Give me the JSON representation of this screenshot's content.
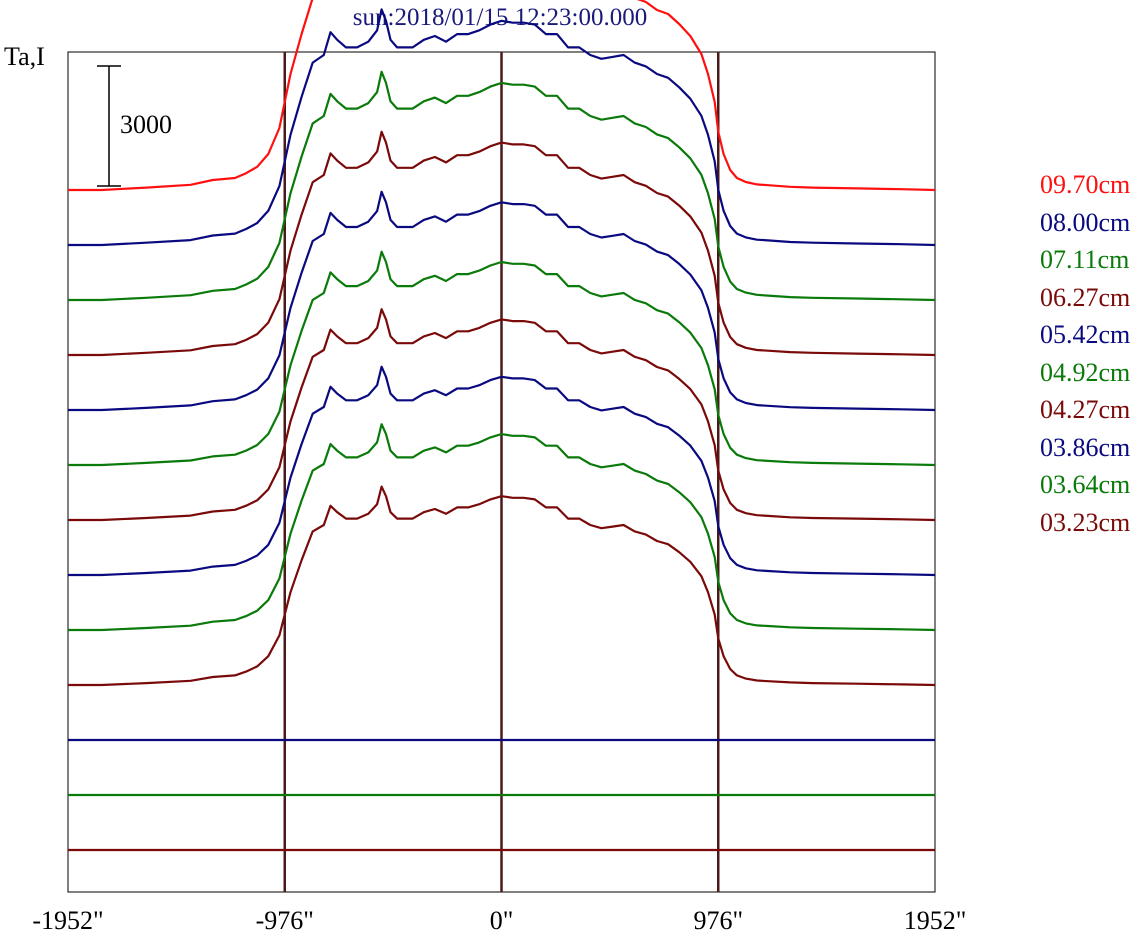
{
  "chart_data": {
    "type": "line",
    "title": "sun:2018/01/15 12:23:00.000",
    "ylabel": "Ta,I",
    "xlabel": "",
    "x_unit": "arcsec",
    "x_ticks": [
      "-1952\"",
      "-976\"",
      "0\"",
      "976\"",
      "1952\""
    ],
    "x_tick_values": [
      -1952,
      -976,
      0,
      976,
      1952
    ],
    "xlim": [
      -1952,
      1952
    ],
    "vertical_markers": [
      -976,
      0,
      976
    ],
    "scale_bar": {
      "label": "3000",
      "value": 3000
    },
    "grid": false,
    "legend_position": "right",
    "profile_x": [
      -1952,
      -1800,
      -1600,
      -1400,
      -1300,
      -1200,
      -1150,
      -1100,
      -1050,
      -1000,
      -950,
      -900,
      -850,
      -800,
      -770,
      -740,
      -700,
      -650,
      -600,
      -560,
      -540,
      -520,
      -500,
      -470,
      -430,
      -400,
      -350,
      -300,
      -250,
      -200,
      -150,
      -100,
      -50,
      0,
      50,
      100,
      150,
      200,
      250,
      300,
      350,
      400,
      450,
      500,
      550,
      600,
      650,
      700,
      750,
      800,
      850,
      900,
      930,
      960,
      976,
      1000,
      1030,
      1060,
      1100,
      1150,
      1200,
      1300,
      1400,
      1600,
      1800,
      1952
    ],
    "profile_y": [
      0,
      0,
      60,
      130,
      250,
      300,
      420,
      580,
      900,
      1550,
      2900,
      3900,
      4800,
      5000,
      5600,
      5400,
      5200,
      5200,
      5350,
      5650,
      6200,
      5900,
      5400,
      5200,
      5200,
      5200,
      5400,
      5500,
      5350,
      5550,
      5550,
      5650,
      5800,
      5900,
      5850,
      5850,
      5800,
      5550,
      5550,
      5200,
      5200,
      5000,
      4900,
      4950,
      5000,
      4800,
      4700,
      4500,
      4400,
      4150,
      3850,
      3400,
      2900,
      2200,
      1450,
      900,
      500,
      300,
      200,
      140,
      120,
      80,
      60,
      40,
      20,
      0
    ],
    "series": [
      {
        "name": "09.70cm",
        "color": "#ff1010",
        "scale": 1.0
      },
      {
        "name": "08.00cm",
        "color": "#0a0a80",
        "scale": 0.95
      },
      {
        "name": "07.11cm",
        "color": "#0a7a0a",
        "scale": 0.92
      },
      {
        "name": "06.27cm",
        "color": "#7a0a0a",
        "scale": 0.9
      },
      {
        "name": "05.42cm",
        "color": "#0a0a80",
        "scale": 0.88
      },
      {
        "name": "04.92cm",
        "color": "#0a7a0a",
        "scale": 0.86
      },
      {
        "name": "04.27cm",
        "color": "#7a0a0a",
        "scale": 0.85
      },
      {
        "name": "03.86cm",
        "color": "#0a0a80",
        "scale": 0.84
      },
      {
        "name": "03.64cm",
        "color": "#0a7a0a",
        "scale": 0.83
      },
      {
        "name": "03.23cm",
        "color": "#7a0a0a",
        "scale": 0.8
      },
      {
        "name": "",
        "color": "#0a0a80",
        "scale": 0.0
      },
      {
        "name": "",
        "color": "#0a7a0a",
        "scale": 0.0
      },
      {
        "name": "",
        "color": "#7a0a0a",
        "scale": 0.0
      }
    ],
    "series_offset": 3000
  }
}
